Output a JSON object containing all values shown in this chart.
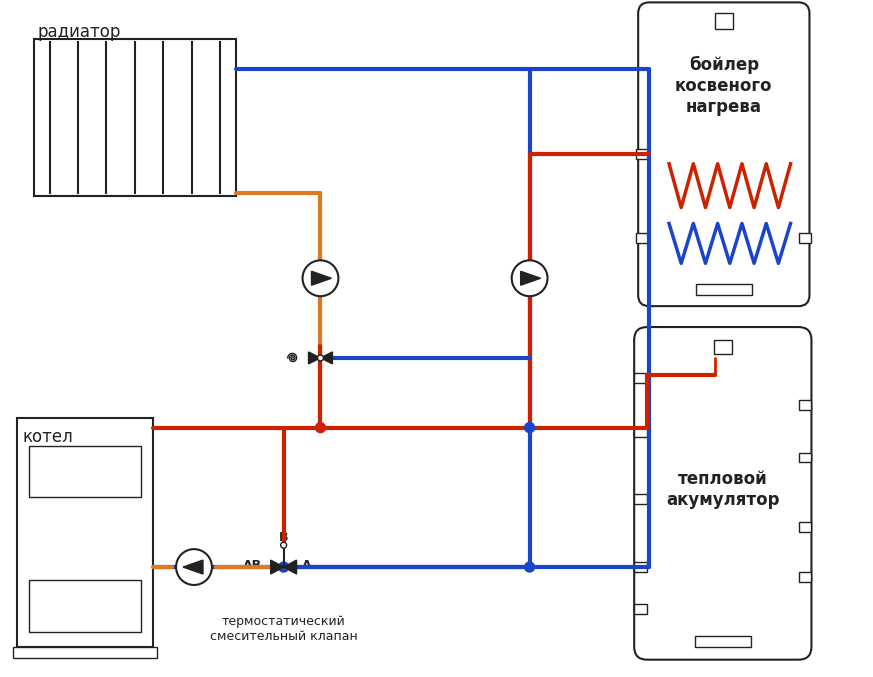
{
  "bg_color": "#ffffff",
  "red": "#cc2200",
  "blue": "#1a44cc",
  "orange": "#e07820",
  "dark": "#222222",
  "line_width": 3.0,
  "radiator_label": "радиатор",
  "boiler_label": "бойлер\nкосвеного\nнагрева",
  "accumulator_label": "тепловой\nакумулятор",
  "kotel_label": "котел",
  "valve_label": "термостатический\nсмесительный клапан"
}
